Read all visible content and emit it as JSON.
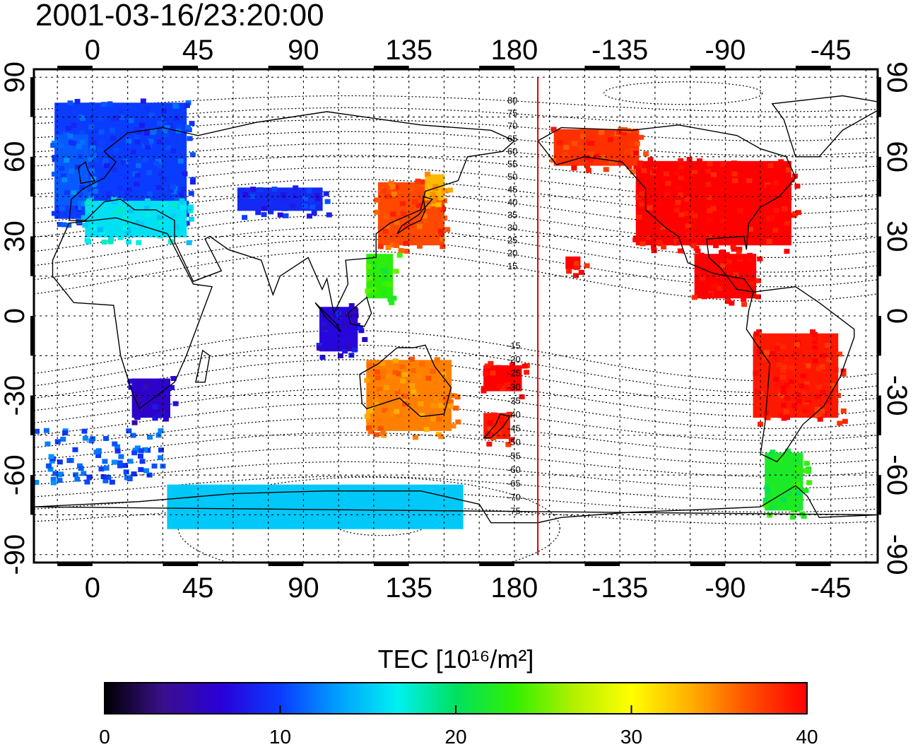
{
  "title": "2001-03-16/23:20:00",
  "map": {
    "lon_ticks": [
      {
        "lon": 0,
        "label": "0"
      },
      {
        "lon": 45,
        "label": "45"
      },
      {
        "lon": 90,
        "label": "90"
      },
      {
        "lon": 135,
        "label": "135"
      },
      {
        "lon": 180,
        "label": "180"
      },
      {
        "lon": 225,
        "label": "-135"
      },
      {
        "lon": 270,
        "label": "-90"
      },
      {
        "lon": 315,
        "label": "-45"
      }
    ],
    "lat_ticks": [
      {
        "lat": 90,
        "label": "90"
      },
      {
        "lat": 60,
        "label": "60"
      },
      {
        "lat": 30,
        "label": "30"
      },
      {
        "lat": 0,
        "label": "0"
      },
      {
        "lat": -30,
        "label": "-30"
      },
      {
        "lat": -60,
        "label": "-60"
      },
      {
        "lat": -90,
        "label": "-90"
      }
    ],
    "lon_range": [
      -25,
      335
    ],
    "lat_range": [
      -93,
      93
    ],
    "subsolar_meridian_lon": 190,
    "grid": true,
    "magnetic_latitude_labels": [
      "80",
      "75",
      "70",
      "65",
      "60",
      "55",
      "50",
      "45",
      "40",
      "35",
      "30",
      "25",
      "20",
      "15",
      "-15",
      "-20",
      "-25",
      "-30",
      "-35",
      "-40",
      "-45",
      "-50",
      "-55",
      "-60",
      "-65",
      "-70",
      "-75"
    ]
  },
  "colorbar": {
    "title": "TEC  [10¹⁶/m²]",
    "min": 0,
    "max": 40,
    "ticks": [
      "0",
      "10",
      "20",
      "30",
      "40"
    ],
    "stops": [
      "#000000",
      "#3b0f8c",
      "#2a00d8",
      "#0a3cff",
      "#00a0ff",
      "#00f0f0",
      "#00e060",
      "#30f000",
      "#b0f000",
      "#ffff00",
      "#ffb000",
      "#ff5000",
      "#ff0000"
    ]
  },
  "tec_regions": [
    {
      "name": "europe",
      "lon": [
        -18,
        42
      ],
      "lat": [
        35,
        82
      ],
      "value": 10
    },
    {
      "name": "north-atlantic-west",
      "lon": [
        -18,
        0
      ],
      "lat": [
        40,
        70
      ],
      "value": 11
    },
    {
      "name": "mediterranean",
      "lon": [
        -5,
        42
      ],
      "lat": [
        28,
        45
      ],
      "value": 16
    },
    {
      "name": "central-asia",
      "lon": [
        60,
        100
      ],
      "lat": [
        38,
        50
      ],
      "value": 9
    },
    {
      "name": "east-asia",
      "lon": [
        120,
        152
      ],
      "lat": [
        25,
        52
      ],
      "value": 37
    },
    {
      "name": "japan-north",
      "lon": [
        140,
        152
      ],
      "lat": [
        42,
        55
      ],
      "value": 33
    },
    {
      "name": "philippines",
      "lon": [
        115,
        130
      ],
      "lat": [
        5,
        25
      ],
      "value": 23
    },
    {
      "name": "indonesia",
      "lon": [
        95,
        115
      ],
      "lat": [
        -15,
        5
      ],
      "value": 7
    },
    {
      "name": "australia",
      "lon": [
        115,
        155
      ],
      "lat": [
        -45,
        -15
      ],
      "value": 35
    },
    {
      "name": "new-zealand",
      "lon": [
        165,
        180
      ],
      "lat": [
        -48,
        -35
      ],
      "value": 39
    },
    {
      "name": "fiji",
      "lon": [
        165,
        185
      ],
      "lat": [
        -30,
        -17
      ],
      "value": 40
    },
    {
      "name": "south-africa",
      "lon": [
        15,
        35
      ],
      "lat": [
        -40,
        -22
      ],
      "value": 6
    },
    {
      "name": "north-america",
      "lon": [
        230,
        300
      ],
      "lat": [
        25,
        60
      ],
      "value": 40
    },
    {
      "name": "alaska",
      "lon": [
        195,
        235
      ],
      "lat": [
        55,
        72
      ],
      "value": 38
    },
    {
      "name": "central-america",
      "lon": [
        255,
        285
      ],
      "lat": [
        5,
        25
      ],
      "value": 40
    },
    {
      "name": "hawaii",
      "lon": [
        200,
        210
      ],
      "lat": [
        16,
        24
      ],
      "value": 40
    },
    {
      "name": "south-america",
      "lon": [
        280,
        320
      ],
      "lat": [
        -40,
        -5
      ],
      "value": 39
    },
    {
      "name": "patagonia",
      "lon": [
        285,
        305
      ],
      "lat": [
        -75,
        -50
      ],
      "value": 22
    },
    {
      "name": "antarctica-east",
      "lon": [
        30,
        160
      ],
      "lat": [
        -82,
        -62
      ],
      "value": 15
    }
  ]
}
